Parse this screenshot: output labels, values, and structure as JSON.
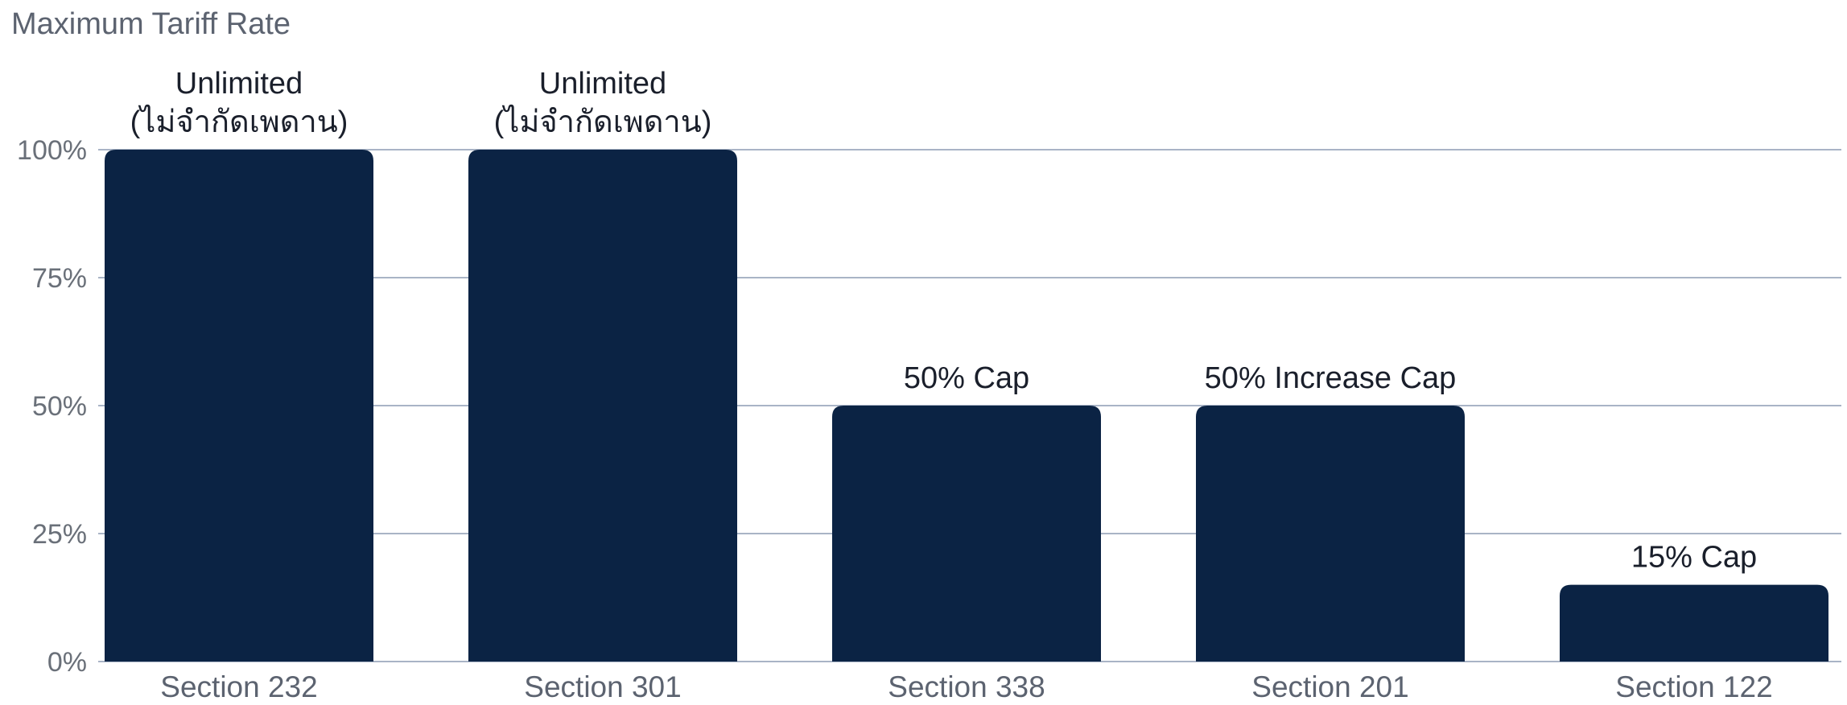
{
  "chart_data": {
    "type": "bar",
    "ylabel": "Maximum Tariff Rate",
    "categories": [
      "Section 232",
      "Section 301",
      "Section 338",
      "Section 201",
      "Section 122"
    ],
    "values": [
      100,
      100,
      50,
      50,
      15
    ],
    "data_labels": [
      [
        "Unlimited",
        "(ไม่จำกัดเพดาน)"
      ],
      [
        "Unlimited",
        "(ไม่จำกัดเพดาน)"
      ],
      [
        "50% Cap"
      ],
      [
        "50% Increase Cap"
      ],
      [
        "15% Cap"
      ]
    ],
    "yticks": [
      0,
      25,
      50,
      75,
      100
    ],
    "ytick_labels": [
      "0%",
      "25%",
      "50%",
      "75%",
      "100%"
    ],
    "ylim": [
      0,
      100
    ],
    "grid": true,
    "legend": "none",
    "colors": {
      "bar": "#0b2344",
      "grid": "#a9b4c6",
      "axis_text": "#6a7079",
      "label_text": "#1a1f2b"
    }
  }
}
